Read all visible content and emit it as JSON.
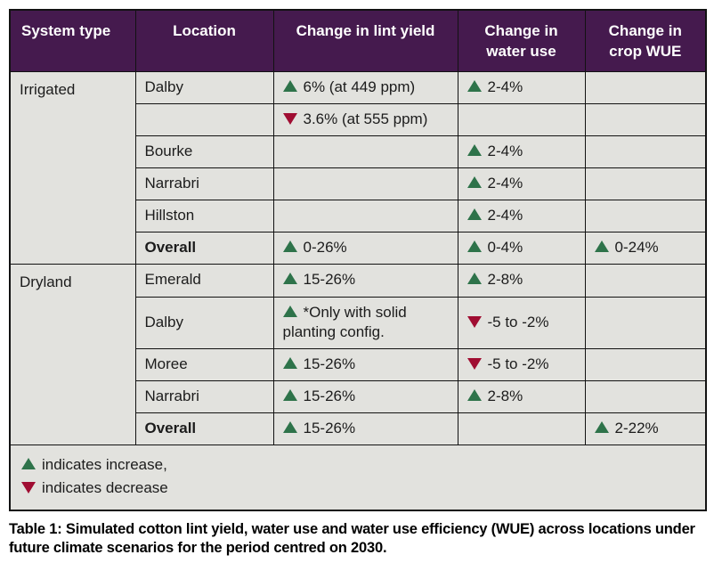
{
  "colors": {
    "header_bg": "#451a4e",
    "header_text": "#ffffff",
    "cell_bg": "#e2e2de",
    "border": "#121212",
    "increase": "#2e734a",
    "decrease": "#a00d32",
    "text": "#1c1c1c"
  },
  "table": {
    "columns": [
      {
        "label": "System type"
      },
      {
        "label": "Location"
      },
      {
        "label": "Change in lint yield"
      },
      {
        "label": "Change in water use"
      },
      {
        "label": "Change in crop WUE"
      }
    ],
    "sections": [
      {
        "system_type": "Irrigated",
        "rows": [
          {
            "location": "Dalby",
            "bold": false,
            "lint_yield": {
              "dir": "up",
              "text": "6% (at 449 ppm)"
            },
            "water_use": {
              "dir": "up",
              "text": "2-4%"
            },
            "crop_wue": null
          },
          {
            "location": "",
            "bold": false,
            "lint_yield": {
              "dir": "down",
              "text": "3.6% (at 555 ppm)"
            },
            "water_use": null,
            "crop_wue": null
          },
          {
            "location": "Bourke",
            "bold": false,
            "lint_yield": null,
            "water_use": {
              "dir": "up",
              "text": "2-4%"
            },
            "crop_wue": null
          },
          {
            "location": "Narrabri",
            "bold": false,
            "lint_yield": null,
            "water_use": {
              "dir": "up",
              "text": "2-4%"
            },
            "crop_wue": null
          },
          {
            "location": "Hillston",
            "bold": false,
            "lint_yield": null,
            "water_use": {
              "dir": "up",
              "text": "2-4%"
            },
            "crop_wue": null
          },
          {
            "location": "Overall",
            "bold": true,
            "lint_yield": {
              "dir": "up",
              "text": "0-26%"
            },
            "water_use": {
              "dir": "up",
              "text": "0-4%"
            },
            "crop_wue": {
              "dir": "up",
              "text": "0-24%"
            }
          }
        ]
      },
      {
        "system_type": "Dryland",
        "rows": [
          {
            "location": "Emerald",
            "bold": false,
            "lint_yield": {
              "dir": "up",
              "text": "15-26%"
            },
            "water_use": {
              "dir": "up",
              "text": "2-8%"
            },
            "crop_wue": null
          },
          {
            "location": "Dalby",
            "bold": false,
            "lint_yield": {
              "dir": "up",
              "text": "*Only with solid planting config."
            },
            "water_use": {
              "dir": "down",
              "text": "-5 to -2%"
            },
            "crop_wue": null
          },
          {
            "location": "Moree",
            "bold": false,
            "lint_yield": {
              "dir": "up",
              "text": "15-26%"
            },
            "water_use": {
              "dir": "down",
              "text": "-5 to -2%"
            },
            "crop_wue": null
          },
          {
            "location": "Narrabri",
            "bold": false,
            "lint_yield": {
              "dir": "up",
              "text": "15-26%"
            },
            "water_use": {
              "dir": "up",
              "text": "2-8%"
            },
            "crop_wue": null
          },
          {
            "location": "Overall",
            "bold": true,
            "lint_yield": {
              "dir": "up",
              "text": "15-26%"
            },
            "water_use": null,
            "crop_wue": {
              "dir": "up",
              "text": "2-22%"
            }
          }
        ]
      }
    ],
    "legend": [
      {
        "dir": "up",
        "text": "indicates increase,"
      },
      {
        "dir": "down",
        "text": "indicates decrease"
      }
    ]
  },
  "page": {
    "caption": "Table 1: Simulated cotton lint yield, water use and water use efficiency (WUE) across locations under future climate scenarios for the period centred on 2030."
  }
}
